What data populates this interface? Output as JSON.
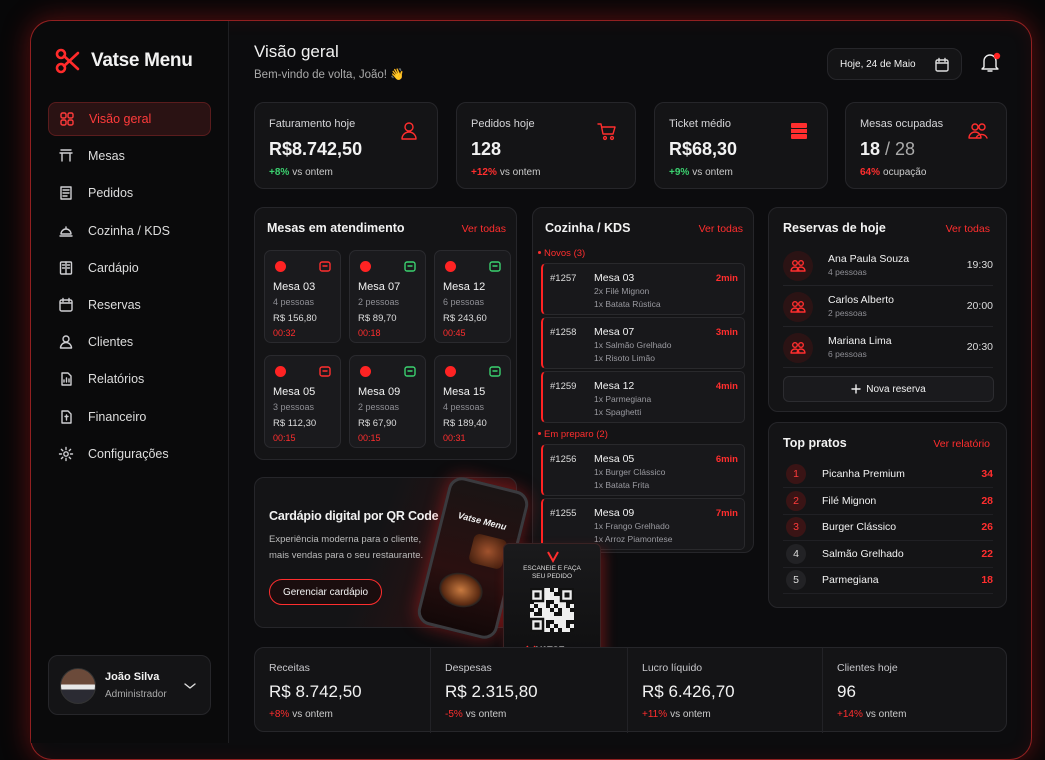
{
  "sidebar": {
    "brand": "Vatse Menu",
    "nav": [
      "Visão geral",
      "Mesas",
      "Pedidos",
      "Cozinha / KDS",
      "Cardápio",
      "Reservas",
      "Clientes",
      "Relatórios",
      "Financeiro",
      "Configurações"
    ],
    "user": {
      "name": "João Silva",
      "role": "Administrador"
    }
  },
  "header": {
    "title": "Visão geral",
    "subtitle": "Bem-vindo de volta, João! 👋",
    "date": "Hoje, 24 de Maio"
  },
  "kpis": [
    {
      "label": "Faturamento hoje",
      "value": "R$8.742,50",
      "change": "+8%",
      "note": "vs ontem"
    },
    {
      "label": "Pedidos hoje",
      "value": "128",
      "change": "+12%",
      "note": "vs ontem"
    },
    {
      "label": "Ticket médio",
      "value": "R$68,30",
      "change": "+9%",
      "note": "vs ontem"
    },
    {
      "label": "Mesas ocupadas",
      "value": "18",
      "suffix": "/ 28",
      "change": "64%",
      "note": "ocupação"
    }
  ],
  "tables": {
    "title": "Mesas em atendimento",
    "link": "Ver todas",
    "items": [
      {
        "name": "Mesa 03",
        "guests": "4 pessoas",
        "amount": "R$ 156,80",
        "time": "00:32"
      },
      {
        "name": "Mesa 07",
        "guests": "2 pessoas",
        "amount": "R$ 89,70",
        "time": "00:18"
      },
      {
        "name": "Mesa 12",
        "guests": "6 pessoas",
        "amount": "R$ 243,60",
        "time": "00:45"
      },
      {
        "name": "Mesa 05",
        "guests": "3 pessoas",
        "amount": "R$ 112,30",
        "time": "00:15"
      },
      {
        "name": "Mesa 09",
        "guests": "2 pessoas",
        "amount": "R$ 67,90",
        "time": "00:15"
      },
      {
        "name": "Mesa 15",
        "guests": "4 pessoas",
        "amount": "R$ 189,40",
        "time": "00:31"
      }
    ]
  },
  "kitchen": {
    "title": "Cozinha / KDS",
    "link": "Ver todas",
    "groups": [
      {
        "label": "Novos (3)",
        "orders": [
          {
            "id": "#1257",
            "table": "Mesa 03",
            "items": [
              "2x Filé Mignon",
              "1x Batata Rústica"
            ],
            "time": "2min"
          },
          {
            "id": "#1258",
            "table": "Mesa 07",
            "items": [
              "1x Salmão Grelhado",
              "1x Risoto Limão"
            ],
            "time": "3min"
          },
          {
            "id": "#1259",
            "table": "Mesa 12",
            "items": [
              "1x Parmegiana",
              "1x Spaghetti"
            ],
            "time": "4min"
          }
        ]
      },
      {
        "label": "Em preparo (2)",
        "orders": [
          {
            "id": "#1256",
            "table": "Mesa 05",
            "items": [
              "1x Burger Clássico",
              "1x Batata Frita"
            ],
            "time": "6min"
          },
          {
            "id": "#1255",
            "table": "Mesa 09",
            "items": [
              "1x Frango Grelhado",
              "1x Arroz Piamontese"
            ],
            "time": "7min"
          }
        ]
      }
    ]
  },
  "promo": {
    "title": "Cardápio digital por QR Code",
    "text": "Experiência moderna para o cliente, mais vendas para o seu restaurante.",
    "button": "Gerenciar cardápio",
    "phone_brand": "Vatse Menu",
    "stand_text": "ESCANEIE E FAÇA SEU PEDIDO",
    "stand_brand": "VATSE"
  },
  "reservations": {
    "title": "Reservas de hoje",
    "link": "Ver todas",
    "items": [
      {
        "name": "Ana Paula Souza",
        "guests": "4 pessoas",
        "time": "19:30"
      },
      {
        "name": "Carlos Alberto",
        "guests": "2 pessoas",
        "time": "20:00"
      },
      {
        "name": "Mariana Lima",
        "guests": "6 pessoas",
        "time": "20:30"
      }
    ],
    "button": "Nova reserva"
  },
  "top_dishes": {
    "title": "Top pratos",
    "link": "Ver relatório",
    "items": [
      {
        "rank": "1",
        "name": "Picanha Premium",
        "count": "34"
      },
      {
        "rank": "2",
        "name": "Filé Mignon",
        "count": "28"
      },
      {
        "rank": "3",
        "name": "Burger Clássico",
        "count": "26"
      },
      {
        "rank": "4",
        "name": "Salmão Grelhado",
        "count": "22"
      },
      {
        "rank": "5",
        "name": "Parmegiana",
        "count": "18"
      }
    ]
  },
  "summary": [
    {
      "label": "Receitas",
      "value": "R$ 8.742,50",
      "change": "+8%",
      "note": "vs ontem"
    },
    {
      "label": "Despesas",
      "value": "R$ 2.315,80",
      "change": "-5%",
      "note": "vs ontem"
    },
    {
      "label": "Lucro líquido",
      "value": "R$ 6.426,70",
      "change": "+11%",
      "note": "vs ontem"
    },
    {
      "label": "Clientes hoje",
      "value": "96",
      "change": "+14%",
      "note": "vs ontem"
    }
  ]
}
